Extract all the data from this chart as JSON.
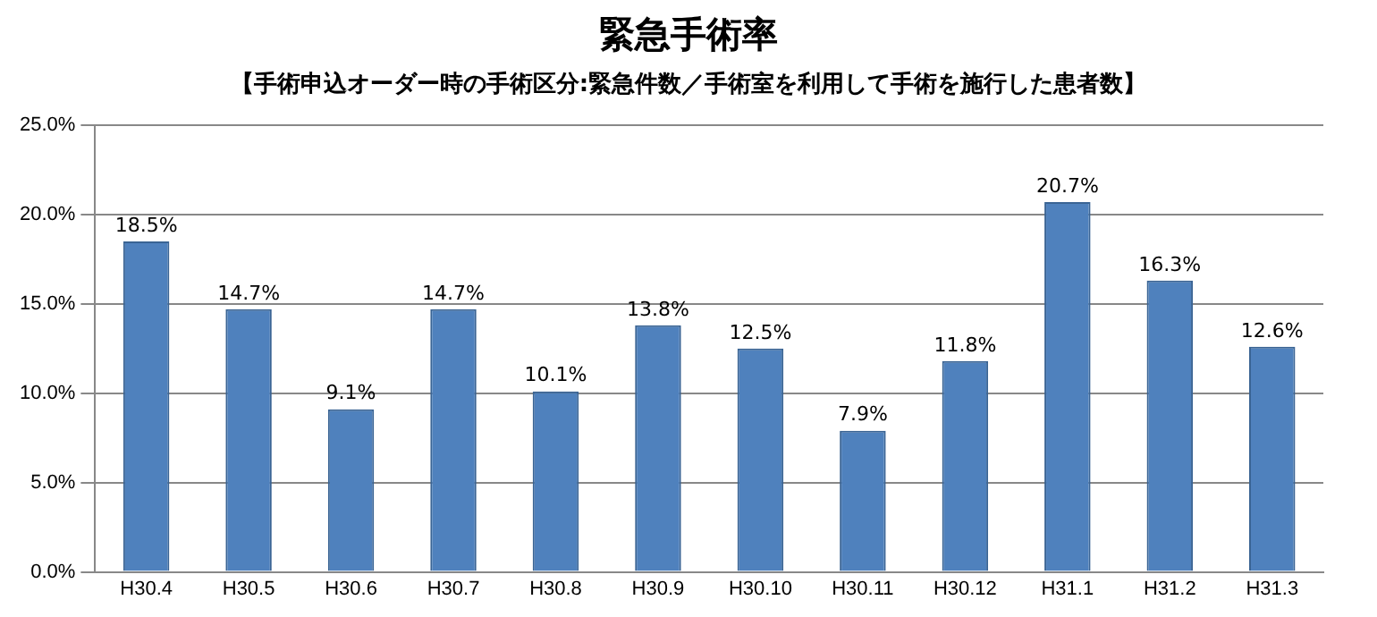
{
  "chart_data": {
    "type": "bar",
    "title": "緊急手術率",
    "subtitle": "【手術申込オーダー時の手術区分:緊急件数／手術室を利用して手術を施行した患者数】",
    "categories": [
      "H30.4",
      "H30.5",
      "H30.6",
      "H30.7",
      "H30.8",
      "H30.9",
      "H30.10",
      "H30.11",
      "H30.12",
      "H31.1",
      "H31.2",
      "H31.3"
    ],
    "values": [
      18.5,
      14.7,
      9.1,
      14.7,
      10.1,
      13.8,
      12.5,
      7.9,
      11.8,
      20.7,
      16.3,
      12.6
    ],
    "value_labels": [
      "18.5%",
      "14.7%",
      "9.1%",
      "14.7%",
      "10.1%",
      "13.8%",
      "12.5%",
      "7.9%",
      "11.8%",
      "20.7%",
      "16.3%",
      "12.6%"
    ],
    "color": "#4f81bd",
    "ylim": [
      0,
      25
    ],
    "yticks": [
      {
        "value": 0,
        "label": "0.0%"
      },
      {
        "value": 5,
        "label": "5.0%"
      },
      {
        "value": 10,
        "label": "10.0%"
      },
      {
        "value": 15,
        "label": "15.0%"
      },
      {
        "value": 20,
        "label": "20.0%"
      },
      {
        "value": 25,
        "label": "25.0%"
      }
    ],
    "grid": "y",
    "legend": false
  }
}
